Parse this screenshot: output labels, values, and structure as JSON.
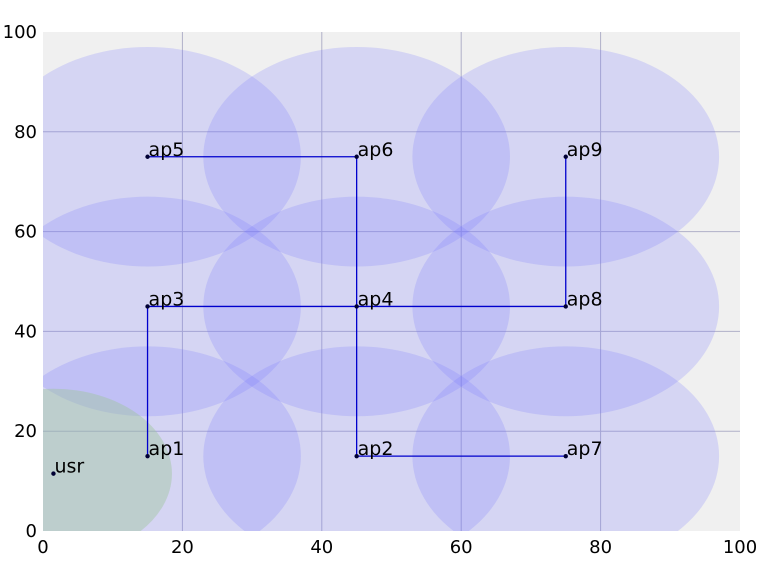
{
  "chart_data": {
    "type": "scatter",
    "xlim": [
      0,
      100
    ],
    "ylim": [
      0,
      100
    ],
    "x_ticks": [
      "0",
      "20",
      "40",
      "60",
      "80",
      "100"
    ],
    "y_ticks": [
      "0",
      "20",
      "40",
      "60",
      "80",
      "100"
    ],
    "grid": true,
    "coverage_radius": 22,
    "colors": {
      "background": "#f0f0f0",
      "grid": "#b0b0c8",
      "coverage": "#7777ff",
      "user_coverage": "#9fc59f",
      "link": "#0000cc",
      "point": "#000033"
    },
    "access_points": [
      {
        "label": "ap1",
        "x": 15,
        "y": 15
      },
      {
        "label": "ap2",
        "x": 45,
        "y": 15
      },
      {
        "label": "ap3",
        "x": 15,
        "y": 45
      },
      {
        "label": "ap4",
        "x": 45,
        "y": 45
      },
      {
        "label": "ap5",
        "x": 15,
        "y": 75
      },
      {
        "label": "ap6",
        "x": 45,
        "y": 75
      },
      {
        "label": "ap7",
        "x": 75,
        "y": 15
      },
      {
        "label": "ap8",
        "x": 75,
        "y": 45
      },
      {
        "label": "ap9",
        "x": 75,
        "y": 75
      }
    ],
    "user": {
      "label": "usr",
      "x": 1.5,
      "y": 11.5,
      "radius": 17
    },
    "links": [
      [
        "ap1",
        "ap3"
      ],
      [
        "ap3",
        "ap4"
      ],
      [
        "ap4",
        "ap8"
      ],
      [
        "ap8",
        "ap9"
      ],
      [
        "ap4",
        "ap6"
      ],
      [
        "ap6",
        "ap5"
      ],
      [
        "ap4",
        "ap2"
      ],
      [
        "ap2",
        "ap7"
      ]
    ]
  }
}
